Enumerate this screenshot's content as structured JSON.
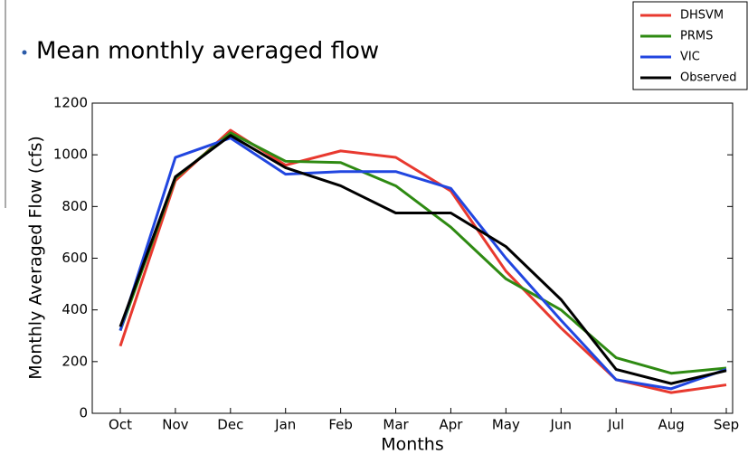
{
  "chart_data": {
    "type": "line",
    "title": "Mean monthly averaged flow",
    "x_label": "Months",
    "y_label": "Monthly Averaged Flow (cfs)",
    "categories": [
      "Oct",
      "Nov",
      "Dec",
      "Jan",
      "Feb",
      "Mar",
      "Apr",
      "May",
      "Jun",
      "Jul",
      "Aug",
      "Sep"
    ],
    "series": [
      {
        "name": "DHSVM",
        "color": "#e8392f",
        "values": [
          260,
          900,
          1095,
          960,
          1015,
          990,
          860,
          550,
          330,
          130,
          80,
          110
        ]
      },
      {
        "name": "PRMS",
        "color": "#2e8a12",
        "values": [
          320,
          910,
          1085,
          975,
          970,
          880,
          720,
          520,
          400,
          215,
          155,
          175
        ]
      },
      {
        "name": "VIC",
        "color": "#2146e0",
        "values": [
          320,
          990,
          1065,
          925,
          935,
          935,
          870,
          600,
          360,
          130,
          95,
          170
        ]
      },
      {
        "name": "Observed",
        "color": "#000000",
        "values": [
          335,
          915,
          1075,
          950,
          880,
          775,
          775,
          645,
          440,
          170,
          115,
          165
        ]
      }
    ],
    "ylim": [
      0,
      1200
    ],
    "yticks": [
      0,
      200,
      400,
      600,
      800,
      1000,
      1200
    ],
    "grid": false,
    "legend": "upper right"
  }
}
